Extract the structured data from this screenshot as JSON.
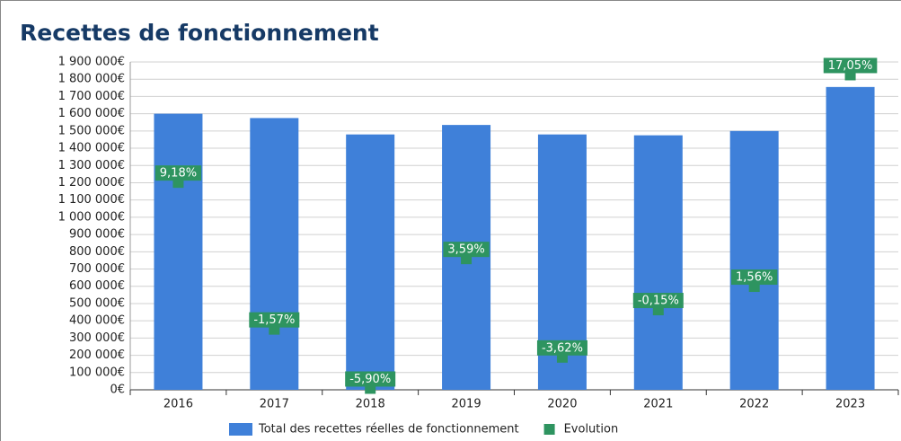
{
  "chart_data": {
    "type": "bar",
    "title": "Recettes de fonctionnement",
    "categories": [
      "2016",
      "2017",
      "2018",
      "2019",
      "2020",
      "2021",
      "2022",
      "2023"
    ],
    "series": [
      {
        "name": "Total des recettes réelles de fonctionnement",
        "type": "bar",
        "color": "#3f80d9",
        "values": [
          1600000,
          1575000,
          1480000,
          1535000,
          1480000,
          1475000,
          1500000,
          1755000
        ]
      },
      {
        "name": "Evolution",
        "type": "marker",
        "axis": "y2",
        "color": "#2e9460",
        "values": [
          9.18,
          -1.57,
          -5.9,
          3.59,
          -3.62,
          -0.15,
          1.56,
          17.05
        ],
        "value_labels": [
          "9,18%",
          "-1,57%",
          "-5,90%",
          "3,59%",
          "-3,62%",
          "-0,15%",
          "1,56%",
          "17,05%"
        ]
      }
    ],
    "ylim": [
      0,
      1900000
    ],
    "yticks": [
      {
        "value": 0,
        "label": "0€"
      },
      {
        "value": 100000,
        "label": "100 000€"
      },
      {
        "value": 200000,
        "label": "200 000€"
      },
      {
        "value": 300000,
        "label": "300 000€"
      },
      {
        "value": 400000,
        "label": "400 000€"
      },
      {
        "value": 500000,
        "label": "500 000€"
      },
      {
        "value": 600000,
        "label": "600 000€"
      },
      {
        "value": 700000,
        "label": "700 000€"
      },
      {
        "value": 800000,
        "label": "800 000€"
      },
      {
        "value": 900000,
        "label": "900 000€"
      },
      {
        "value": 1000000,
        "label": "1 000 000€"
      },
      {
        "value": 1100000,
        "label": "1 100 000€"
      },
      {
        "value": 1200000,
        "label": "1 200 000€"
      },
      {
        "value": 1300000,
        "label": "1 300 000€"
      },
      {
        "value": 1400000,
        "label": "1 400 000€"
      },
      {
        "value": 1500000,
        "label": "1 500 000€"
      },
      {
        "value": 1600000,
        "label": "1 600 000€"
      },
      {
        "value": 1700000,
        "label": "1 700 000€"
      },
      {
        "value": 1800000,
        "label": "1 800 000€"
      },
      {
        "value": 1900000,
        "label": "1 900 000€"
      }
    ],
    "y2lim": [
      -6,
      18
    ],
    "grid": true,
    "legend": "bottom"
  }
}
